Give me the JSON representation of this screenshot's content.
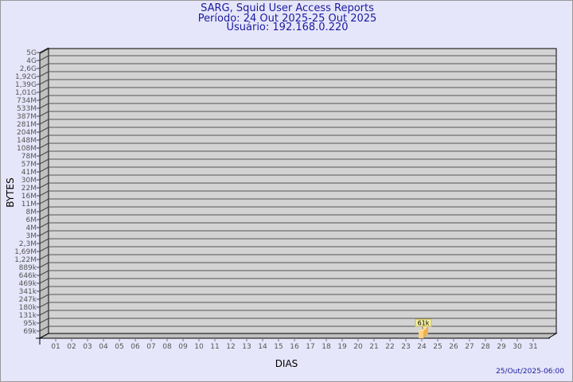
{
  "header": {
    "title": "SARG, Squid User Access Reports",
    "period": "Período: 24 Out 2025-25 Out 2025",
    "user": "Usuário: 192.168.0.220"
  },
  "footer": {
    "timestamp": "25/Out/2025-06:00"
  },
  "chart_data": {
    "type": "bar",
    "xlabel": "DIAS",
    "ylabel": "BYTES",
    "y_ticks": [
      "5G",
      "4G",
      "2,6G",
      "1,92G",
      "1,39G",
      "1,01G",
      "734M",
      "533M",
      "387M",
      "281M",
      "204M",
      "148M",
      "108M",
      "78M",
      "57M",
      "41M",
      "30M",
      "22M",
      "16M",
      "11M",
      "8M",
      "6M",
      "4M",
      "3M",
      "2,3M",
      "1,69M",
      "1,22M",
      "889k",
      "646k",
      "469k",
      "341k",
      "247k",
      "180k",
      "131k",
      "95k",
      "69k"
    ],
    "y_scale": "log",
    "categories": [
      "01",
      "02",
      "03",
      "04",
      "05",
      "06",
      "07",
      "08",
      "09",
      "10",
      "11",
      "12",
      "13",
      "14",
      "15",
      "16",
      "17",
      "18",
      "19",
      "20",
      "21",
      "22",
      "23",
      "24",
      "25",
      "26",
      "27",
      "28",
      "29",
      "30",
      "31"
    ],
    "bars": [
      {
        "day": "24",
        "value": 61000,
        "label": "61k"
      }
    ],
    "grid": true,
    "colors": {
      "plot": "#d3d3d3",
      "bar": "#ffd27f",
      "bar_side": "#f0b050",
      "label_bg": "#f5f0a0",
      "text": "#1a1aa0"
    }
  }
}
